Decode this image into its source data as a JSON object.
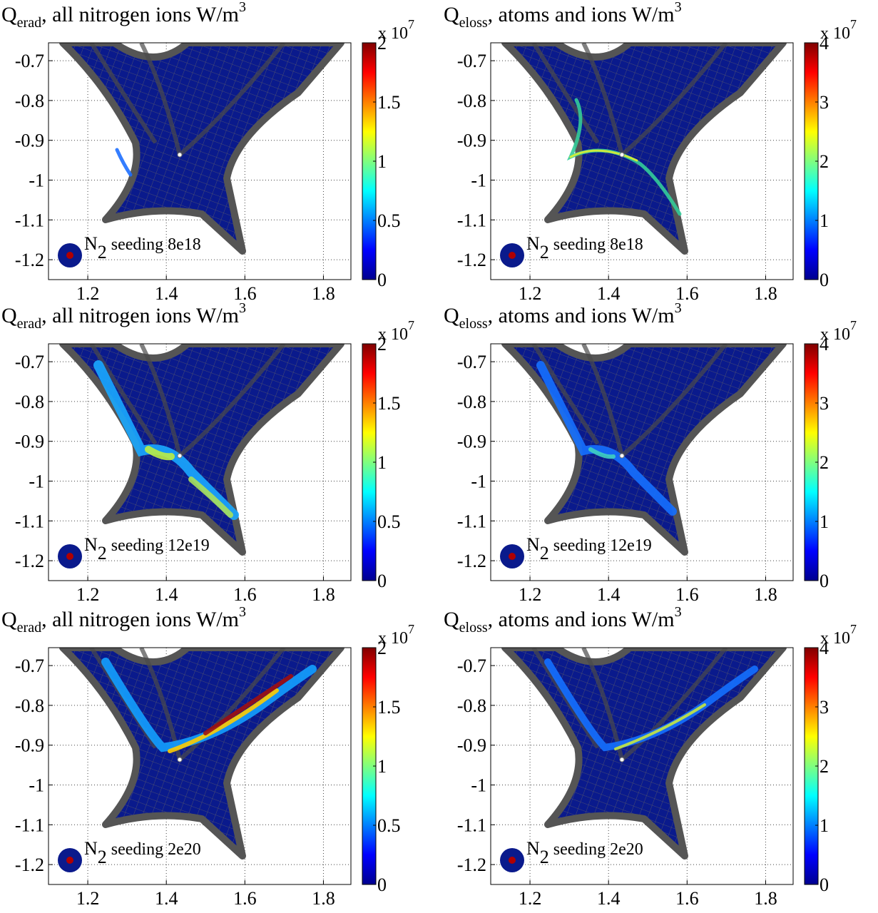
{
  "chart_data": [
    {
      "type": "heatmap",
      "title": {
        "symbol": "Q",
        "subscript": "erad",
        "text": ",  all nitrogen ions W/m",
        "superscript": "3"
      },
      "annotation": {
        "species": "N",
        "subscript": "2",
        "text": " seeding 8e18"
      },
      "xlim": [
        1.1,
        1.87
      ],
      "ylim": [
        -1.25,
        -0.655
      ],
      "xticks": [
        1.2,
        1.4,
        1.6,
        1.8
      ],
      "yticks": [
        -1.2,
        -1.1,
        -1,
        -0.9,
        -0.8,
        -0.7
      ],
      "grid": true,
      "colormap": "jet",
      "colorbar": {
        "lim": [
          0,
          2
        ],
        "ticks": [
          0,
          0.5,
          1,
          1.5,
          2
        ],
        "multiplier": "x 10",
        "exponent": "7"
      }
    },
    {
      "type": "heatmap",
      "title": {
        "symbol": "Q",
        "subscript": "eloss",
        "text": ",  atoms and ions W/m",
        "superscript": "3"
      },
      "annotation": {
        "species": "N",
        "subscript": "2",
        "text": " seeding 8e18"
      },
      "xlim": [
        1.1,
        1.87
      ],
      "ylim": [
        -1.25,
        -0.655
      ],
      "xticks": [
        1.2,
        1.4,
        1.6,
        1.8
      ],
      "yticks": [
        -1.2,
        -1.1,
        -1,
        -0.9,
        -0.8,
        -0.7
      ],
      "grid": true,
      "colormap": "jet",
      "colorbar": {
        "lim": [
          0,
          4
        ],
        "ticks": [
          0,
          1,
          2,
          3,
          4
        ],
        "multiplier": "x 10",
        "exponent": "7"
      }
    },
    {
      "type": "heatmap",
      "title": {
        "symbol": "Q",
        "subscript": "erad",
        "text": ",  all nitrogen ions W/m",
        "superscript": "3"
      },
      "annotation": {
        "species": "N",
        "subscript": "2",
        "text": " seeding 12e19"
      },
      "xlim": [
        1.1,
        1.87
      ],
      "ylim": [
        -1.25,
        -0.655
      ],
      "xticks": [
        1.2,
        1.4,
        1.6,
        1.8
      ],
      "yticks": [
        -1.2,
        -1.1,
        -1,
        -0.9,
        -0.8,
        -0.7
      ],
      "grid": true,
      "colormap": "jet",
      "colorbar": {
        "lim": [
          0,
          2
        ],
        "ticks": [
          0,
          0.5,
          1,
          1.5,
          2
        ],
        "multiplier": "x 10",
        "exponent": "7"
      }
    },
    {
      "type": "heatmap",
      "title": {
        "symbol": "Q",
        "subscript": "eloss",
        "text": ",  atoms and ions W/m",
        "superscript": "3"
      },
      "annotation": {
        "species": "N",
        "subscript": "2",
        "text": " seeding 12e19"
      },
      "xlim": [
        1.1,
        1.87
      ],
      "ylim": [
        -1.25,
        -0.655
      ],
      "xticks": [
        1.2,
        1.4,
        1.6,
        1.8
      ],
      "yticks": [
        -1.2,
        -1.1,
        -1,
        -0.9,
        -0.8,
        -0.7
      ],
      "grid": true,
      "colormap": "jet",
      "colorbar": {
        "lim": [
          0,
          4
        ],
        "ticks": [
          0,
          1,
          2,
          3,
          4
        ],
        "multiplier": "x 10",
        "exponent": "7"
      }
    },
    {
      "type": "heatmap",
      "title": {
        "symbol": "Q",
        "subscript": "erad",
        "text": ",  all nitrogen ions W/m",
        "superscript": "3"
      },
      "annotation": {
        "species": "N",
        "subscript": "2",
        "text": " seeding 2e20"
      },
      "xlim": [
        1.1,
        1.87
      ],
      "ylim": [
        -1.25,
        -0.655
      ],
      "xticks": [
        1.2,
        1.4,
        1.6,
        1.8
      ],
      "yticks": [
        -1.2,
        -1.1,
        -1,
        -0.9,
        -0.8,
        -0.7
      ],
      "grid": true,
      "colormap": "jet",
      "colorbar": {
        "lim": [
          0,
          2
        ],
        "ticks": [
          0,
          0.5,
          1,
          1.5,
          2
        ],
        "multiplier": "x 10",
        "exponent": "7"
      }
    },
    {
      "type": "heatmap",
      "title": {
        "symbol": "Q",
        "subscript": "eloss",
        "text": ",  atoms and ions W/m",
        "superscript": "3"
      },
      "annotation": {
        "species": "N",
        "subscript": "2",
        "text": " seeding 2e20"
      },
      "xlim": [
        1.1,
        1.87
      ],
      "ylim": [
        -1.25,
        -0.655
      ],
      "xticks": [
        1.2,
        1.4,
        1.6,
        1.8
      ],
      "yticks": [
        -1.2,
        -1.1,
        -1,
        -0.9,
        -0.8,
        -0.7
      ],
      "grid": true,
      "colormap": "jet",
      "colorbar": {
        "lim": [
          0,
          4
        ],
        "ticks": [
          0,
          1,
          2,
          3,
          4
        ],
        "multiplier": "x 10",
        "exponent": "7"
      }
    }
  ]
}
